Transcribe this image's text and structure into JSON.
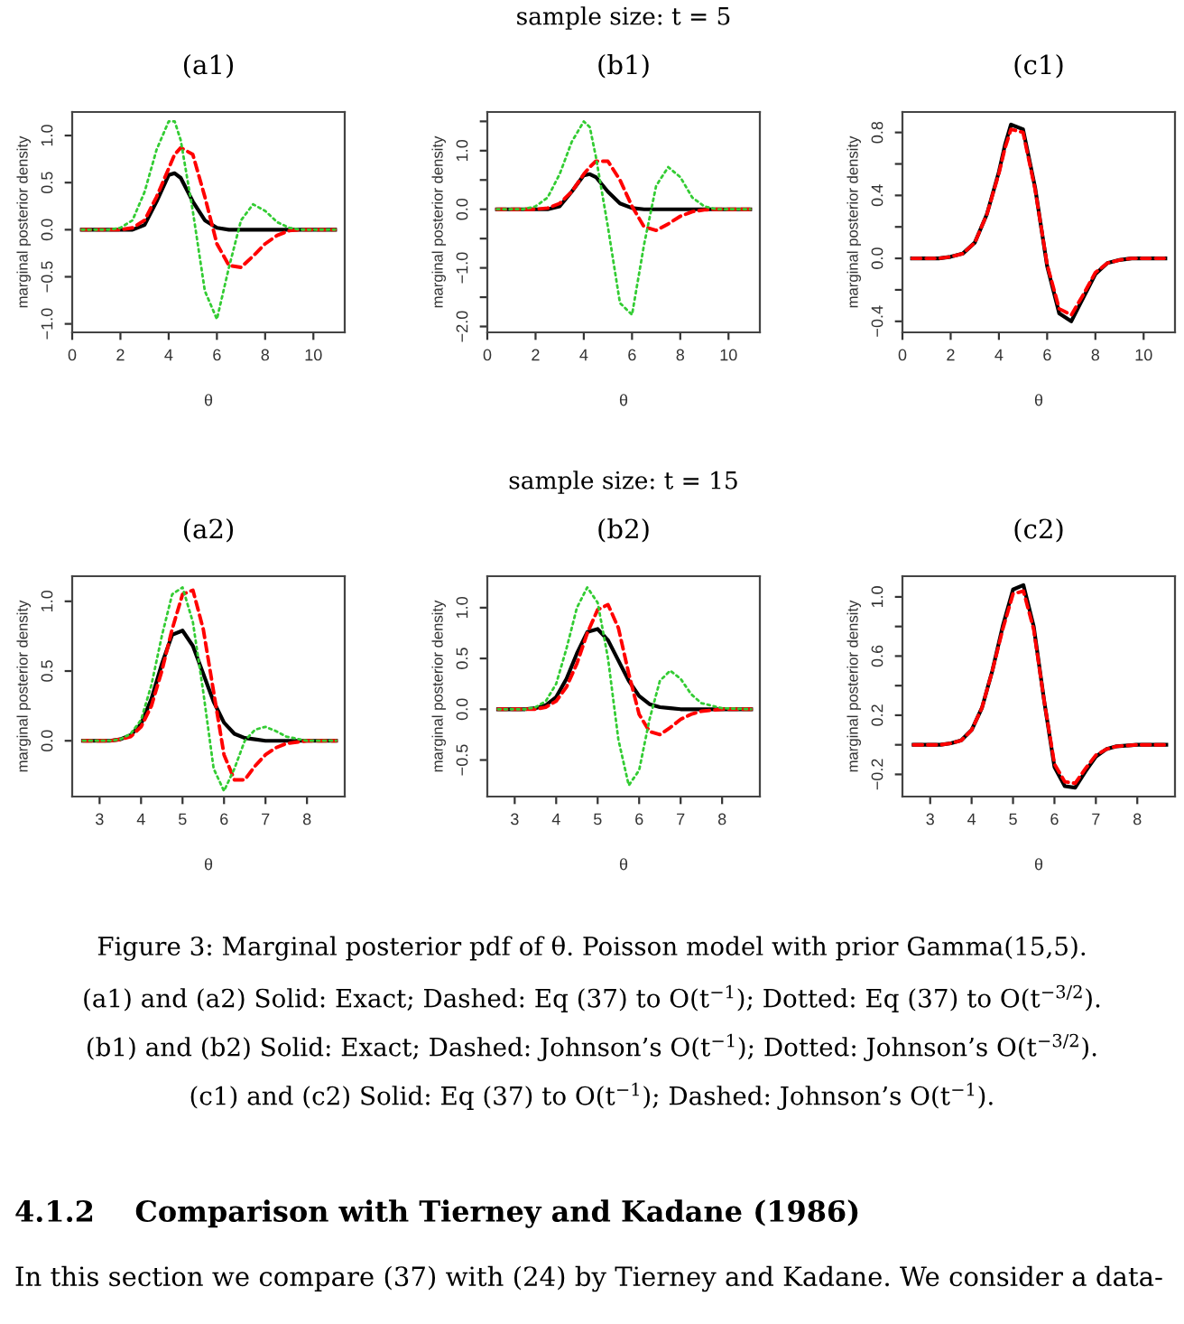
{
  "chart_data": [
    {
      "type": "line",
      "title": "(a1)",
      "xlabel": "θ",
      "ylabel": "marginal posterior density",
      "x": [
        0.4,
        1,
        1.5,
        2,
        2.5,
        3,
        3.5,
        4,
        4.25,
        4.5,
        5,
        5.5,
        6,
        6.5,
        7,
        7.5,
        8,
        8.5,
        9,
        9.5,
        10,
        10.9
      ],
      "xlim": [
        0,
        11.3
      ],
      "ylim": [
        -1.09,
        1.25
      ],
      "xticks": [
        0,
        2,
        4,
        6,
        8,
        10
      ],
      "yticks": [
        {
          "value": -1,
          "label": "−1.0"
        },
        {
          "value": -0.5,
          "label": "−0.5"
        },
        {
          "value": 0,
          "label": "0.0"
        },
        {
          "value": 0.5,
          "label": "0.5"
        },
        {
          "value": 1,
          "label": "1.0"
        }
      ],
      "series": [
        {
          "color": "#33cc33",
          "line_style": "dotted",
          "values": [
            0,
            0,
            0,
            0.02,
            0.1,
            0.4,
            0.85,
            1.15,
            1.15,
            0.95,
            0.2,
            -0.65,
            -0.95,
            -0.4,
            0.1,
            0.27,
            0.2,
            0.08,
            0.02,
            0,
            0,
            0
          ]
        },
        {
          "color": "#ff0000",
          "line_style": "dashed",
          "values": [
            0,
            0,
            0,
            0,
            0.02,
            0.1,
            0.35,
            0.65,
            0.8,
            0.87,
            0.8,
            0.35,
            -0.15,
            -0.38,
            -0.4,
            -0.28,
            -0.15,
            -0.06,
            -0.01,
            0,
            0,
            0
          ]
        },
        {
          "color": "#000000",
          "line_style": "solid",
          "values": [
            0,
            0,
            0,
            0,
            0,
            0.05,
            0.3,
            0.58,
            0.6,
            0.55,
            0.3,
            0.1,
            0.02,
            0,
            0,
            0,
            0,
            0,
            0,
            0,
            0,
            0
          ]
        }
      ]
    },
    {
      "type": "line",
      "subtitle": "sample size: t = 5",
      "title": "(b1)",
      "xlabel": "θ",
      "ylabel": "marginal posterior density",
      "x": [
        0.4,
        1,
        1.5,
        2,
        2.5,
        3,
        3.5,
        4,
        4.25,
        4.5,
        5,
        5.5,
        6,
        6.5,
        7,
        7.5,
        8,
        8.5,
        9,
        9.5,
        10,
        10.9
      ],
      "xlim": [
        0,
        11.3
      ],
      "ylim": [
        -2.1,
        1.66
      ],
      "xticks": [
        0,
        2,
        4,
        6,
        8,
        10
      ],
      "yticks": [
        {
          "value": -2,
          "label": "−2.0"
        },
        {
          "value": -1.5,
          "label": null
        },
        {
          "value": -1,
          "label": "−1.0"
        },
        {
          "value": -0.5,
          "label": null
        },
        {
          "value": 0,
          "label": "0.0"
        },
        {
          "value": 0.5,
          "label": null
        },
        {
          "value": 1,
          "label": "1.0"
        },
        {
          "value": 1.5,
          "label": null
        }
      ],
      "series": [
        {
          "color": "#33cc33",
          "line_style": "dotted",
          "values": [
            0,
            0,
            0,
            0.05,
            0.2,
            0.6,
            1.15,
            1.5,
            1.4,
            0.9,
            -0.3,
            -1.6,
            -1.8,
            -0.6,
            0.4,
            0.72,
            0.55,
            0.2,
            0.05,
            0,
            0,
            0
          ]
        },
        {
          "color": "#ff0000",
          "line_style": "dashed",
          "values": [
            0,
            0,
            0,
            0,
            0.02,
            0.1,
            0.3,
            0.6,
            0.72,
            0.82,
            0.82,
            0.5,
            0.05,
            -0.3,
            -0.36,
            -0.25,
            -0.12,
            -0.04,
            -0.01,
            0,
            0,
            0
          ]
        },
        {
          "color": "#000000",
          "line_style": "solid",
          "values": [
            0,
            0,
            0,
            0,
            0,
            0.05,
            0.3,
            0.58,
            0.6,
            0.55,
            0.3,
            0.1,
            0.02,
            0,
            0,
            0,
            0,
            0,
            0,
            0,
            0,
            0
          ]
        }
      ]
    },
    {
      "type": "line",
      "title": "(c1)",
      "xlabel": "θ",
      "ylabel": "marginal posterior density",
      "x": [
        0.4,
        1,
        1.5,
        2,
        2.5,
        3,
        3.5,
        4,
        4.25,
        4.5,
        5,
        5.5,
        6,
        6.5,
        7,
        7.5,
        8,
        8.5,
        9,
        9.5,
        10,
        10.9
      ],
      "xlim": [
        0,
        11.3
      ],
      "ylim": [
        -0.47,
        0.93
      ],
      "xticks": [
        0,
        2,
        4,
        6,
        8,
        10
      ],
      "yticks": [
        {
          "value": -0.4,
          "label": "−0.4"
        },
        {
          "value": -0.2,
          "label": null
        },
        {
          "value": 0,
          "label": "0.0"
        },
        {
          "value": 0.2,
          "label": null
        },
        {
          "value": 0.4,
          "label": "0.4"
        },
        {
          "value": 0.6,
          "label": null
        },
        {
          "value": 0.8,
          "label": "0.8"
        }
      ],
      "series": [
        {
          "color": "#000000",
          "line_style": "solid",
          "values": [
            0,
            0,
            0,
            0.01,
            0.03,
            0.1,
            0.28,
            0.55,
            0.72,
            0.85,
            0.82,
            0.45,
            -0.05,
            -0.35,
            -0.4,
            -0.25,
            -0.1,
            -0.03,
            -0.01,
            0,
            0,
            0
          ]
        },
        {
          "color": "#ff0000",
          "line_style": "dashed",
          "values": [
            0,
            0,
            0,
            0.01,
            0.03,
            0.1,
            0.28,
            0.54,
            0.7,
            0.82,
            0.8,
            0.44,
            -0.04,
            -0.32,
            -0.36,
            -0.23,
            -0.09,
            -0.03,
            -0.01,
            0,
            0,
            0
          ]
        }
      ]
    },
    {
      "type": "line",
      "title": "(a2)",
      "xlabel": "θ",
      "ylabel": "marginal posterior density",
      "x": [
        2.6,
        3,
        3.25,
        3.5,
        3.75,
        4,
        4.25,
        4.5,
        4.75,
        5,
        5.25,
        5.5,
        5.75,
        6,
        6.25,
        6.5,
        6.75,
        7,
        7.25,
        7.5,
        8,
        8.7
      ],
      "xlim": [
        2.34,
        8.91
      ],
      "ylim": [
        -0.4,
        1.18
      ],
      "xticks": [
        3,
        4,
        5,
        6,
        7,
        8
      ],
      "yticks": [
        {
          "value": 0,
          "label": "0.0"
        },
        {
          "value": 0.5,
          "label": "0.5"
        },
        {
          "value": 1,
          "label": "1.0"
        }
      ],
      "series": [
        {
          "color": "#33cc33",
          "line_style": "dotted",
          "values": [
            0,
            0,
            0,
            0.01,
            0.05,
            0.15,
            0.4,
            0.75,
            1.05,
            1.1,
            0.85,
            0.35,
            -0.2,
            -0.36,
            -0.2,
            0,
            0.08,
            0.1,
            0.07,
            0.03,
            0,
            0
          ]
        },
        {
          "color": "#ff0000",
          "line_style": "dashed",
          "values": [
            0,
            0,
            0,
            0.01,
            0.03,
            0.1,
            0.25,
            0.5,
            0.8,
            1.05,
            1.08,
            0.8,
            0.35,
            -0.1,
            -0.28,
            -0.28,
            -0.18,
            -0.1,
            -0.05,
            -0.02,
            0,
            0
          ]
        },
        {
          "color": "#000000",
          "line_style": "solid",
          "values": [
            0,
            0,
            0,
            0.01,
            0.04,
            0.12,
            0.3,
            0.55,
            0.76,
            0.79,
            0.68,
            0.48,
            0.28,
            0.13,
            0.05,
            0.02,
            0.01,
            0,
            0,
            0,
            0,
            0
          ]
        }
      ]
    },
    {
      "type": "line",
      "subtitle": "sample size: t = 15",
      "title": "(b2)",
      "xlabel": "θ",
      "ylabel": "marginal posterior density",
      "x": [
        2.6,
        3,
        3.25,
        3.5,
        3.75,
        4,
        4.25,
        4.5,
        4.75,
        5,
        5.25,
        5.5,
        5.75,
        6,
        6.25,
        6.5,
        6.75,
        7,
        7.25,
        7.5,
        8,
        8.7
      ],
      "xlim": [
        2.34,
        8.91
      ],
      "ylim": [
        -0.86,
        1.31
      ],
      "xticks": [
        3,
        4,
        5,
        6,
        7,
        8
      ],
      "yticks": [
        {
          "value": -0.5,
          "label": "−0.5"
        },
        {
          "value": 0,
          "label": "0.0"
        },
        {
          "value": 0.5,
          "label": "0.5"
        },
        {
          "value": 1,
          "label": "1.0"
        }
      ],
      "series": [
        {
          "color": "#33cc33",
          "line_style": "dotted",
          "values": [
            0,
            0,
            0,
            0.02,
            0.08,
            0.25,
            0.6,
            1.0,
            1.2,
            1.05,
            0.5,
            -0.3,
            -0.75,
            -0.6,
            -0.1,
            0.28,
            0.38,
            0.3,
            0.15,
            0.06,
            0.01,
            0
          ]
        },
        {
          "color": "#ff0000",
          "line_style": "dashed",
          "values": [
            0,
            0,
            0,
            0,
            0.02,
            0.08,
            0.22,
            0.45,
            0.75,
            0.98,
            1.03,
            0.8,
            0.35,
            -0.05,
            -0.22,
            -0.25,
            -0.18,
            -0.1,
            -0.05,
            -0.02,
            0,
            0
          ]
        },
        {
          "color": "#000000",
          "line_style": "solid",
          "values": [
            0,
            0,
            0,
            0.01,
            0.04,
            0.12,
            0.3,
            0.55,
            0.76,
            0.79,
            0.68,
            0.48,
            0.28,
            0.13,
            0.05,
            0.02,
            0.01,
            0,
            0,
            0,
            0,
            0
          ]
        }
      ]
    },
    {
      "type": "line",
      "title": "(c2)",
      "xlabel": "θ",
      "ylabel": "marginal posterior density",
      "x": [
        2.6,
        3,
        3.25,
        3.5,
        3.75,
        4,
        4.25,
        4.5,
        4.75,
        5,
        5.25,
        5.5,
        5.75,
        6,
        6.25,
        6.5,
        6.75,
        7,
        7.25,
        7.5,
        8,
        8.7
      ],
      "xlim": [
        2.33,
        8.91
      ],
      "ylim": [
        -0.35,
        1.14
      ],
      "xticks": [
        3,
        4,
        5,
        6,
        7,
        8
      ],
      "yticks": [
        {
          "value": -0.2,
          "label": "−0.2"
        },
        {
          "value": 0,
          "label": null
        },
        {
          "value": 0.2,
          "label": "0.2"
        },
        {
          "value": 0.4,
          "label": null
        },
        {
          "value": 0.6,
          "label": "0.6"
        },
        {
          "value": 0.8,
          "label": null
        },
        {
          "value": 1,
          "label": "1.0"
        }
      ],
      "series": [
        {
          "color": "#000000",
          "line_style": "solid",
          "values": [
            0,
            0,
            0,
            0.01,
            0.03,
            0.1,
            0.25,
            0.5,
            0.8,
            1.05,
            1.08,
            0.8,
            0.3,
            -0.15,
            -0.28,
            -0.29,
            -0.18,
            -0.08,
            -0.03,
            -0.01,
            0,
            0
          ]
        },
        {
          "color": "#ff0000",
          "line_style": "dashed",
          "values": [
            0,
            0,
            0,
            0.01,
            0.03,
            0.1,
            0.25,
            0.5,
            0.78,
            1.02,
            1.04,
            0.78,
            0.3,
            -0.13,
            -0.25,
            -0.26,
            -0.16,
            -0.07,
            -0.03,
            -0.01,
            0,
            0
          ]
        }
      ],
      "annotations": [
        "Figure 3: Marginal posterior pdf of θ. Poisson model with prior Gamma(15,5).",
        "(a1) and (a2) Solid: Exact; Dashed: Eq (37) to O(t$^{−1}$); Dotted: Eq (37) to O(t$^{−3/2}$).",
        "(b1) and (b2) Solid: Exact; Dashed: Johnson’s O(t$^{−1}$); Dotted: Johnson’s O(t$^{−3/2}$).",
        "(c1) and (c2) Solid: Eq (37) to O(t$^{−1}$); Dashed: Johnson’s O(t$^{−1}$).",
        "4.1.2    Comparison with Tierney and Kadane (1986)",
        "In this section we compare (37) with (24) by Tierney and Kadane. We consider a data-"
      ]
    }
  ]
}
